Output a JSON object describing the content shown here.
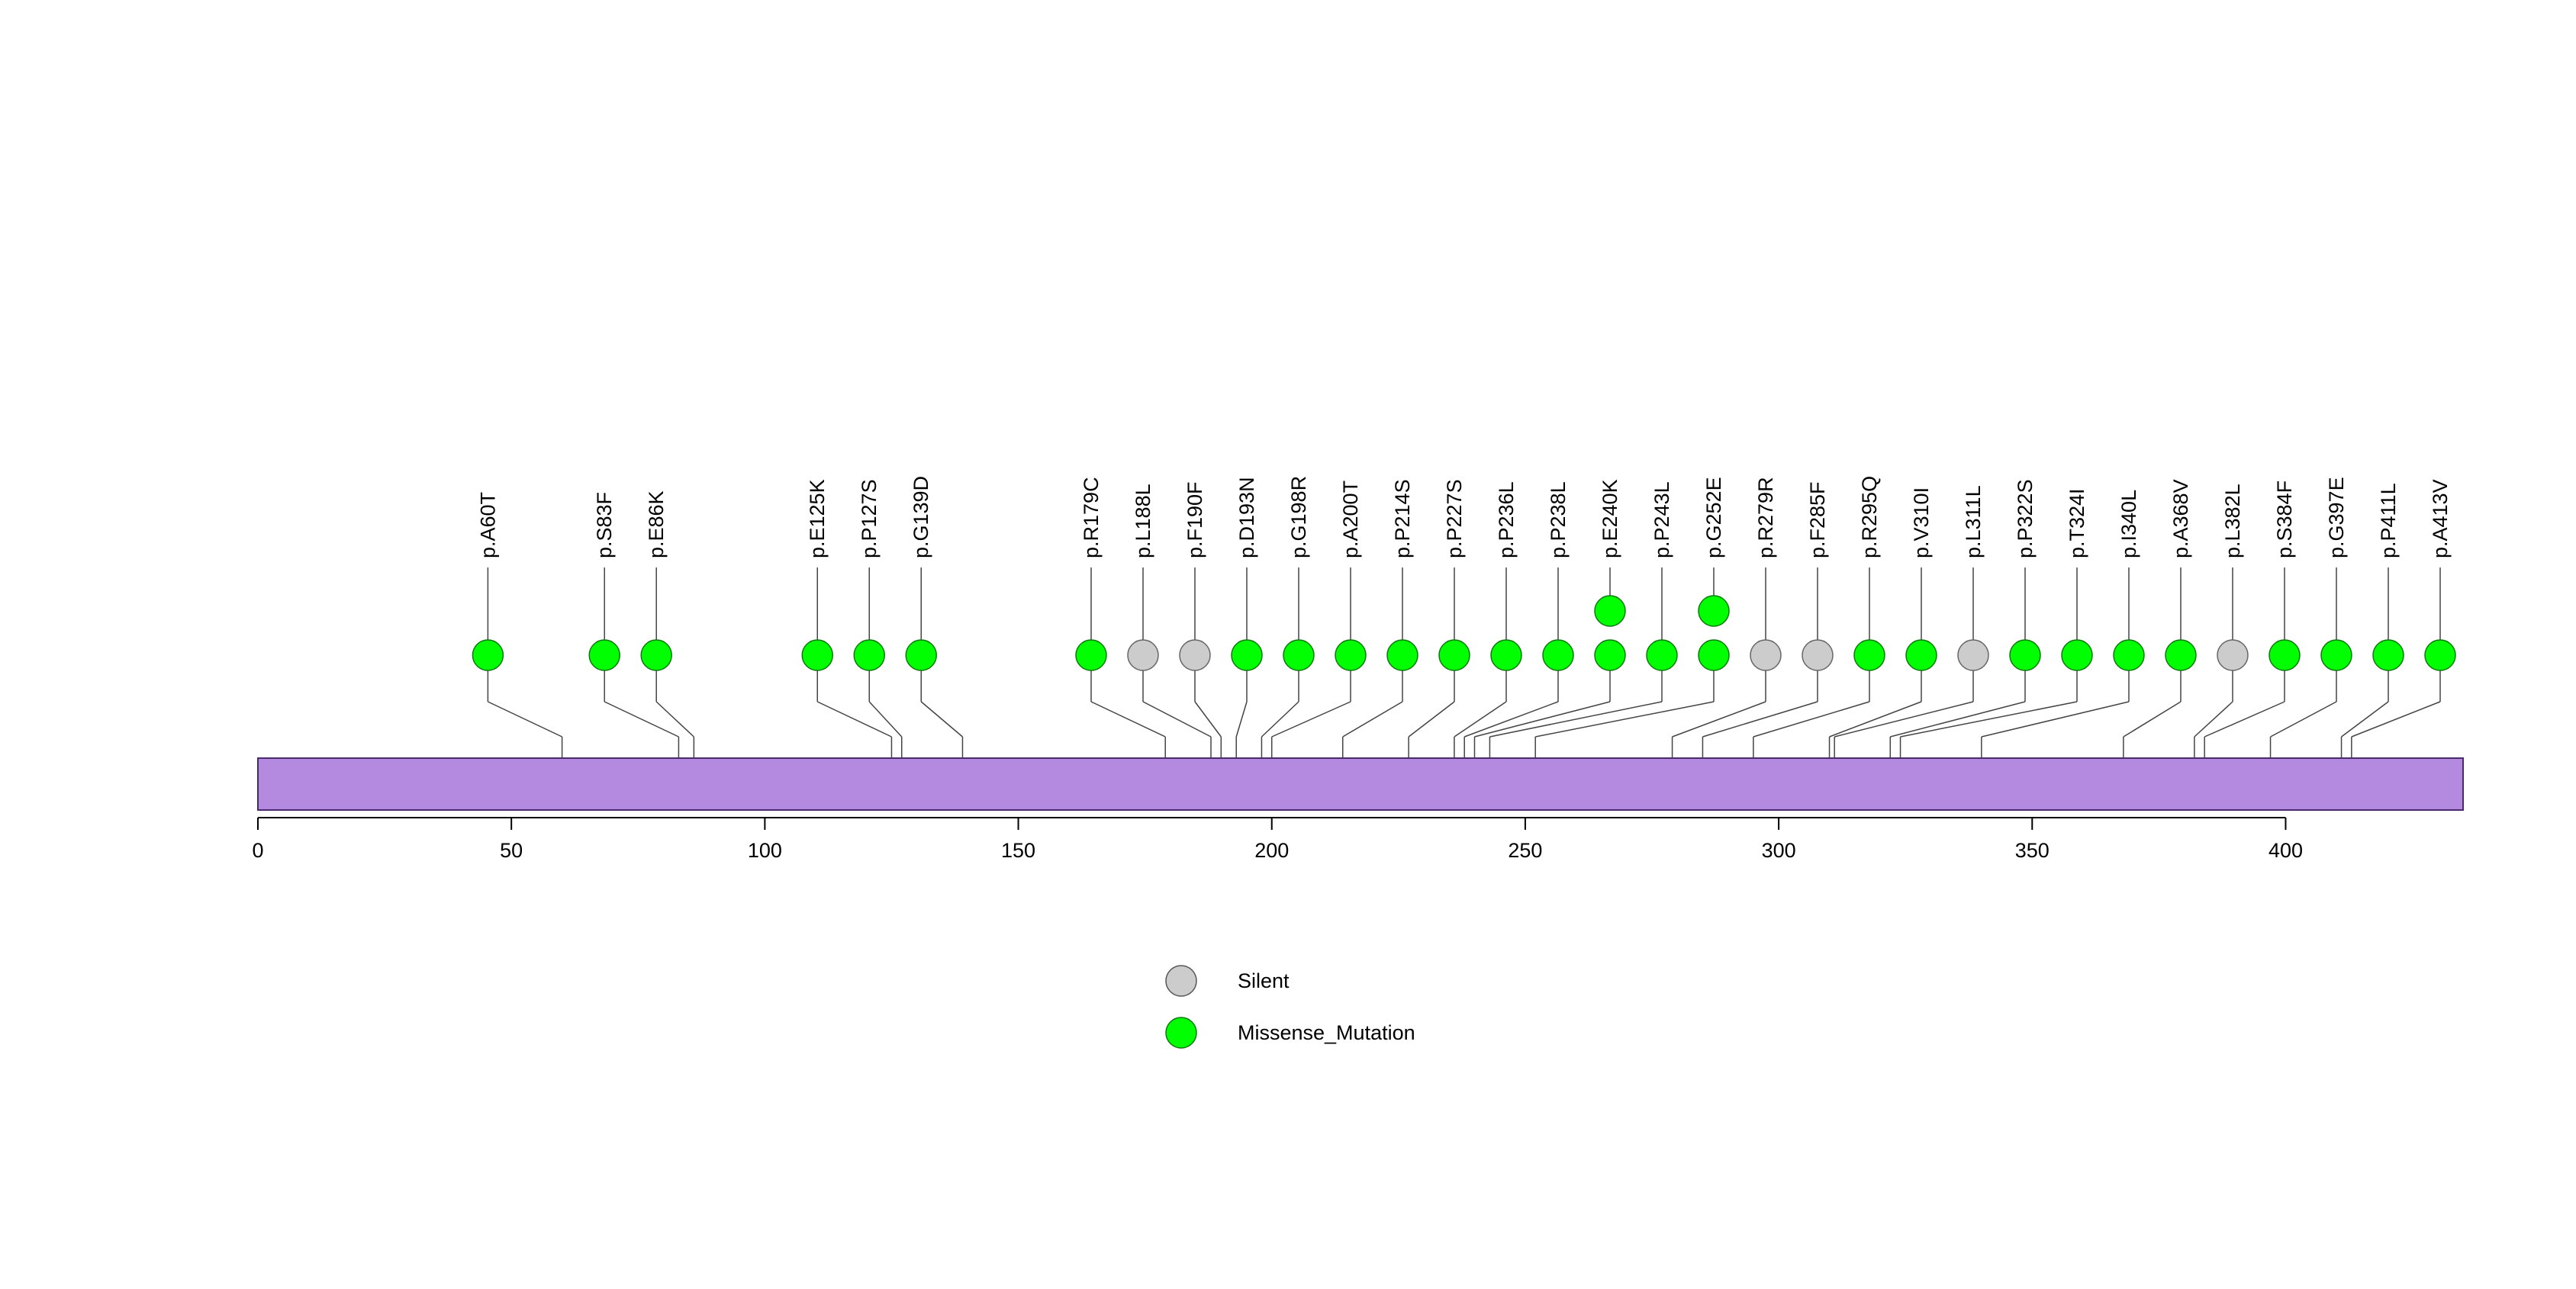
{
  "chart_data": {
    "type": "lollipop",
    "title": "",
    "xlabel": "",
    "ylabel": "",
    "xlim": [
      0,
      435
    ],
    "xticks": [
      0,
      50,
      100,
      150,
      200,
      250,
      300,
      350,
      400
    ],
    "domain_color": "#b38ae0",
    "categories": [
      {
        "name": "Silent",
        "color": "#cccccc"
      },
      {
        "name": "Missense_Mutation",
        "color": "#00ff00"
      }
    ],
    "mutations": [
      {
        "label": "p.A60T",
        "position": 60,
        "count": 1,
        "type": "Missense_Mutation"
      },
      {
        "label": "p.S83F",
        "position": 83,
        "count": 1,
        "type": "Missense_Mutation"
      },
      {
        "label": "p.E86K",
        "position": 86,
        "count": 1,
        "type": "Missense_Mutation"
      },
      {
        "label": "p.E125K",
        "position": 125,
        "count": 1,
        "type": "Missense_Mutation"
      },
      {
        "label": "p.P127S",
        "position": 127,
        "count": 1,
        "type": "Missense_Mutation"
      },
      {
        "label": "p.G139D",
        "position": 139,
        "count": 1,
        "type": "Missense_Mutation"
      },
      {
        "label": "p.R179C",
        "position": 179,
        "count": 1,
        "type": "Missense_Mutation"
      },
      {
        "label": "p.L188L",
        "position": 188,
        "count": 1,
        "type": "Silent"
      },
      {
        "label": "p.F190F",
        "position": 190,
        "count": 1,
        "type": "Silent"
      },
      {
        "label": "p.D193N",
        "position": 193,
        "count": 1,
        "type": "Missense_Mutation"
      },
      {
        "label": "p.G198R",
        "position": 198,
        "count": 1,
        "type": "Missense_Mutation"
      },
      {
        "label": "p.A200T",
        "position": 200,
        "count": 1,
        "type": "Missense_Mutation"
      },
      {
        "label": "p.P214S",
        "position": 214,
        "count": 1,
        "type": "Missense_Mutation"
      },
      {
        "label": "p.P227S",
        "position": 227,
        "count": 1,
        "type": "Missense_Mutation"
      },
      {
        "label": "p.P236L",
        "position": 236,
        "count": 1,
        "type": "Missense_Mutation"
      },
      {
        "label": "p.P238L",
        "position": 238,
        "count": 1,
        "type": "Missense_Mutation"
      },
      {
        "label": "p.E240K",
        "position": 240,
        "count": 2,
        "type": "Missense_Mutation"
      },
      {
        "label": "p.P243L",
        "position": 243,
        "count": 1,
        "type": "Missense_Mutation"
      },
      {
        "label": "p.G252E",
        "position": 252,
        "count": 2,
        "type": "Missense_Mutation"
      },
      {
        "label": "p.R279R",
        "position": 279,
        "count": 1,
        "type": "Silent"
      },
      {
        "label": "p.F285F",
        "position": 285,
        "count": 1,
        "type": "Silent"
      },
      {
        "label": "p.R295Q",
        "position": 295,
        "count": 1,
        "type": "Missense_Mutation"
      },
      {
        "label": "p.V310I",
        "position": 310,
        "count": 1,
        "type": "Missense_Mutation"
      },
      {
        "label": "p.L311L",
        "position": 311,
        "count": 1,
        "type": "Silent"
      },
      {
        "label": "p.P322S",
        "position": 322,
        "count": 1,
        "type": "Missense_Mutation"
      },
      {
        "label": "p.T324I",
        "position": 324,
        "count": 1,
        "type": "Missense_Mutation"
      },
      {
        "label": "p.I340L",
        "position": 340,
        "count": 1,
        "type": "Missense_Mutation"
      },
      {
        "label": "p.A368V",
        "position": 368,
        "count": 1,
        "type": "Missense_Mutation"
      },
      {
        "label": "p.L382L",
        "position": 382,
        "count": 1,
        "type": "Silent"
      },
      {
        "label": "p.S384F",
        "position": 384,
        "count": 1,
        "type": "Missense_Mutation"
      },
      {
        "label": "p.G397E",
        "position": 397,
        "count": 1,
        "type": "Missense_Mutation"
      },
      {
        "label": "p.P411L",
        "position": 411,
        "count": 1,
        "type": "Missense_Mutation"
      },
      {
        "label": "p.A413V",
        "position": 413,
        "count": 1,
        "type": "Missense_Mutation"
      }
    ]
  },
  "legend": {
    "items": [
      {
        "label": "Silent",
        "color": "#cccccc"
      },
      {
        "label": "Missense_Mutation",
        "color": "#00ff00"
      }
    ]
  }
}
